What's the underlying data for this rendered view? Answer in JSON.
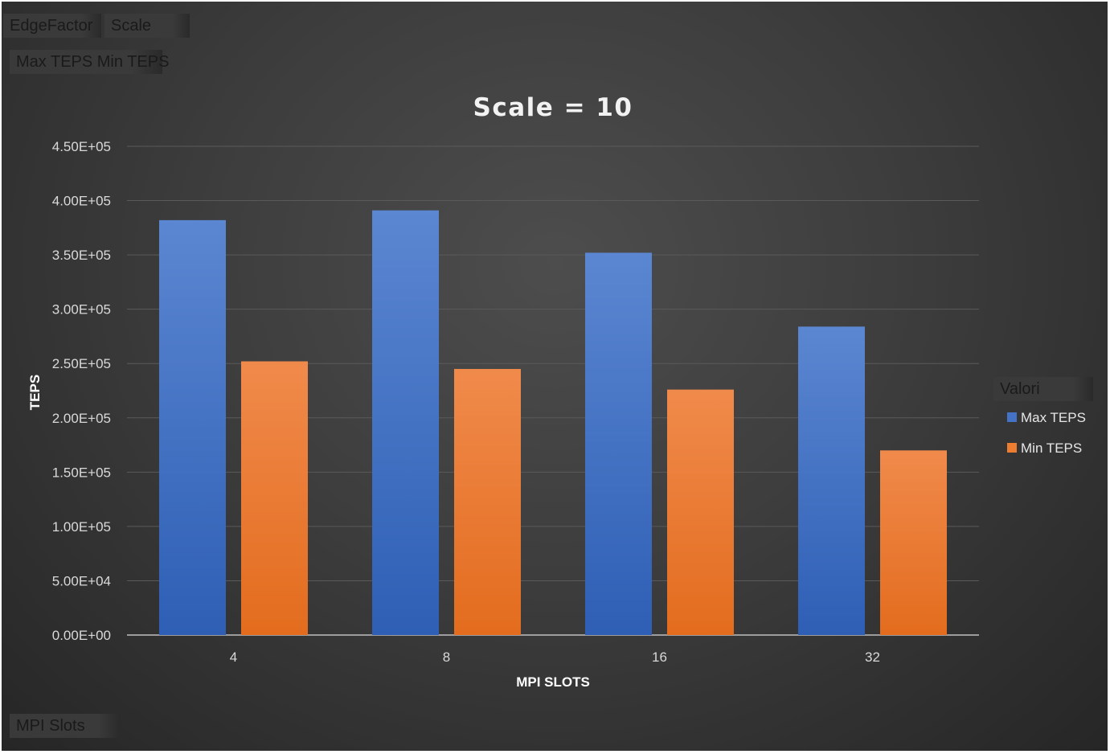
{
  "field_buttons": {
    "edge_factor": "EdgeFactor",
    "scale": "Scale",
    "values": "Max TEPS Min TEPS",
    "axis_field": "MPI Slots",
    "legend_field": "Valori"
  },
  "colors": {
    "max_teps": "#4472c4",
    "min_teps": "#ed7d31"
  },
  "chart_data": {
    "type": "bar",
    "title": "Scale = 10",
    "xlabel": "MPI SLOTS",
    "ylabel": "TEPS",
    "categories": [
      "4",
      "8",
      "16",
      "32"
    ],
    "series": [
      {
        "name": "Max TEPS",
        "values": [
          382000,
          391000,
          352000,
          284000
        ]
      },
      {
        "name": "Min TEPS",
        "values": [
          252000,
          245000,
          226000,
          170000
        ]
      }
    ],
    "ylim": [
      0,
      450000
    ],
    "yticks": [
      "0.00E+00",
      "5.00E+04",
      "1.00E+05",
      "1.50E+05",
      "2.00E+05",
      "2.50E+05",
      "3.00E+05",
      "3.50E+05",
      "4.00E+05",
      "4.50E+05"
    ],
    "grid": true,
    "legend_title": "Valori",
    "legend_position": "right"
  }
}
